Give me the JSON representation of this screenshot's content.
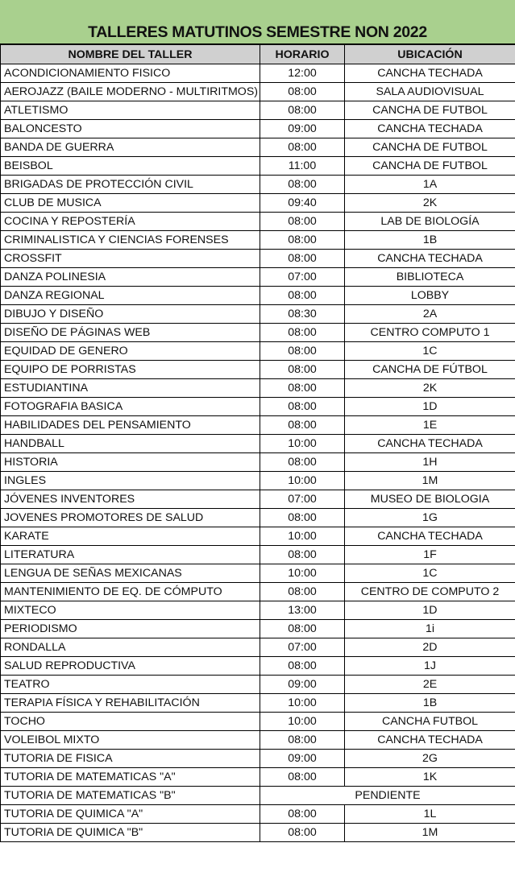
{
  "title": "TALLERES MATUTINOS SEMESTRE NON 2022",
  "headers": [
    "NOMBRE DEL TALLER",
    "HORARIO",
    "UBICACIÓN"
  ],
  "colors": {
    "title_bg": "#a9d08e",
    "header_bg": "#d0d0d0"
  },
  "rows": [
    [
      "ACONDICIONAMIENTO FISICO",
      "12:00",
      "CANCHA TECHADA"
    ],
    [
      "AEROJAZZ (BAILE MODERNO - MULTIRITMOS)",
      "08:00",
      "SALA AUDIOVISUAL"
    ],
    [
      "ATLETISMO",
      "08:00",
      "CANCHA DE FUTBOL"
    ],
    [
      "BALONCESTO",
      "09:00",
      "CANCHA TECHADA"
    ],
    [
      "BANDA DE GUERRA",
      "08:00",
      "CANCHA DE FUTBOL"
    ],
    [
      "BEISBOL",
      "11:00",
      "CANCHA DE FUTBOL"
    ],
    [
      "BRIGADAS DE PROTECCIÓN CIVIL",
      "08:00",
      "1A"
    ],
    [
      "CLUB DE MUSICA",
      "09:40",
      "2K"
    ],
    [
      "COCINA Y REPOSTERÍA",
      "08:00",
      "LAB DE BIOLOGÍA"
    ],
    [
      "CRIMINALISTICA Y CIENCIAS FORENSES",
      "08:00",
      "1B"
    ],
    [
      "CROSSFIT",
      "08:00",
      "CANCHA TECHADA"
    ],
    [
      "DANZA POLINESIA",
      "07:00",
      "BIBLIOTECA"
    ],
    [
      "DANZA REGIONAL",
      "08:00",
      "LOBBY"
    ],
    [
      "DIBUJO Y DISEÑO",
      "08:30",
      "2A"
    ],
    [
      "DISEÑO DE PÁGINAS WEB",
      "08:00",
      "CENTRO COMPUTO 1"
    ],
    [
      "EQUIDAD DE GENERO",
      "08:00",
      "1C"
    ],
    [
      "EQUIPO DE PORRISTAS",
      "08:00",
      "CANCHA DE FÚTBOL"
    ],
    [
      "ESTUDIANTINA",
      "08:00",
      "2K"
    ],
    [
      "FOTOGRAFIA BASICA",
      "08:00",
      "1D"
    ],
    [
      "HABILIDADES DEL PENSAMIENTO",
      "08:00",
      "1E"
    ],
    [
      "HANDBALL",
      "10:00",
      "CANCHA TECHADA"
    ],
    [
      "HISTORIA",
      "08:00",
      "1H"
    ],
    [
      "INGLES",
      "10:00",
      "1M"
    ],
    [
      "JÓVENES INVENTORES",
      "07:00",
      "MUSEO DE BIOLOGIA"
    ],
    [
      "JOVENES PROMOTORES DE  SALUD",
      "08:00",
      "1G"
    ],
    [
      "KARATE",
      "10:00",
      "CANCHA TECHADA"
    ],
    [
      "LITERATURA",
      "08:00",
      "1F"
    ],
    [
      "LENGUA DE SEÑAS MEXICANAS",
      "10:00",
      "1C"
    ],
    [
      "MANTENIMIENTO DE EQ. DE CÓMPUTO",
      "08:00",
      "CENTRO DE COMPUTO 2"
    ],
    [
      "MIXTECO",
      "13:00",
      "1D"
    ],
    [
      "PERIODISMO",
      "08:00",
      "1i"
    ],
    [
      "RONDALLA",
      "07:00",
      "2D"
    ],
    [
      "SALUD REPRODUCTIVA",
      "08:00",
      "1J"
    ],
    [
      "TEATRO",
      "09:00",
      "2E"
    ],
    [
      "TERAPIA FÍSICA  Y REHABILITACIÓN",
      "10:00",
      "1B"
    ],
    [
      "TOCHO",
      "10:00",
      "CANCHA FUTBOL"
    ],
    [
      "VOLEIBOL MIXTO",
      "08:00",
      "CANCHA TECHADA"
    ],
    [
      "TUTORIA DE FISICA",
      "09:00",
      "2G"
    ],
    [
      "TUTORIA DE MATEMATICAS \"A\"",
      "08:00",
      "1K"
    ],
    [
      "TUTORIA DE MATEMATICAS \"B\"",
      "PENDIENTE"
    ],
    [
      "TUTORIA DE QUIMICA \"A\"",
      "08:00",
      "1L"
    ],
    [
      "TUTORIA DE QUIMICA \"B\"",
      "08:00",
      "1M"
    ]
  ]
}
